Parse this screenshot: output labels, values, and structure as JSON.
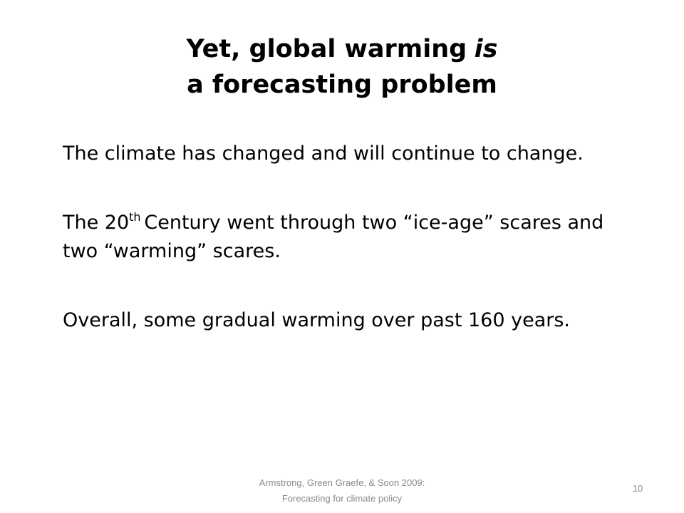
{
  "title": {
    "line1": "Yet, global warming",
    "line1_emphasis": "is",
    "line2": "a forecasting problem"
  },
  "paragraphs": [
    {
      "text": "The climate has changed and will continue to change."
    },
    {
      "before": "The 20",
      "sup": "th",
      "after": "Century went through two “ice-age” scares and two “warming” scares."
    },
    {
      "text": "Overall, some gradual warming over past 160 years."
    }
  ],
  "footer": {
    "line1": "Armstrong, Green Graefe, & Soon 2009:",
    "line2": "Forecasting for climate policy",
    "page_number": 10
  }
}
